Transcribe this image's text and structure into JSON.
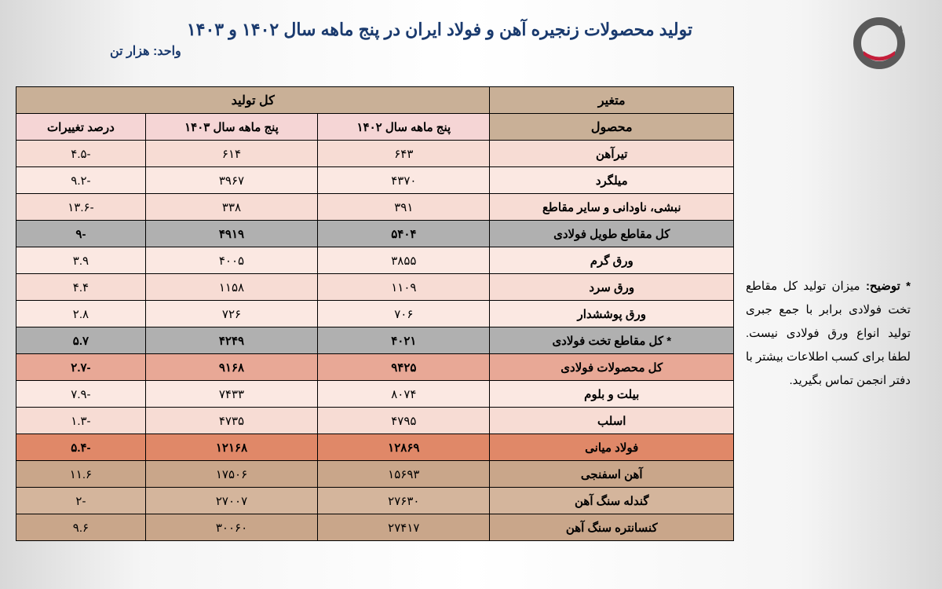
{
  "title": "تولید محصولات زنجیره آهن و فولاد ایران در پنج ماهه سال ۱۴۰۲ و ۱۴۰۳",
  "unit": "واحد: هزار تن",
  "sideNote": {
    "star": "*",
    "label": "توضیح:",
    "text": "میزان تولید کل مقاطع تخت فولادی برابر با جمع جبری تولید انواع ورق فولادی نیست. لطفا برای کسب اطلاعات بیشتر با دفتر انجمن تماس بگیرید."
  },
  "table": {
    "headers": {
      "variable": "متغیر",
      "product": "محصول",
      "totalProduction": "کل تولید",
      "period1402": "پنج ماهه سال ۱۴۰۲",
      "period1403": "پنج ماهه سال ۱۴۰۳",
      "changePercent": "درصد تغییرات"
    },
    "rows": [
      {
        "product": "تیرآهن",
        "v1402": "۶۴۳",
        "v1403": "۶۱۴",
        "change": "-۴.۵",
        "class": "row-light"
      },
      {
        "product": "میلگرد",
        "v1402": "۴۳۷۰",
        "v1403": "۳۹۶۷",
        "change": "-۹.۲",
        "class": "row-lighter"
      },
      {
        "product": "نبشی، ناودانی و سایر مقاطع",
        "v1402": "۳۹۱",
        "v1403": "۳۳۸",
        "change": "-۱۳.۶",
        "class": "row-light"
      },
      {
        "product": "کل مقاطع طویل فولادی",
        "v1402": "۵۴۰۴",
        "v1403": "۴۹۱۹",
        "change": "-۹",
        "class": "row-gray"
      },
      {
        "product": "ورق گرم",
        "v1402": "۳۸۵۵",
        "v1403": "۴۰۰۵",
        "change": "۳.۹",
        "class": "row-lighter"
      },
      {
        "product": "ورق سرد",
        "v1402": "۱۱۰۹",
        "v1403": "۱۱۵۸",
        "change": "۴.۴",
        "class": "row-light"
      },
      {
        "product": "ورق پوششدار",
        "v1402": "۷۰۶",
        "v1403": "۷۲۶",
        "change": "۲.۸",
        "class": "row-lighter"
      },
      {
        "product": "* کل مقاطع تخت فولادی",
        "v1402": "۴۰۲۱",
        "v1403": "۴۲۴۹",
        "change": "۵.۷",
        "class": "row-gray"
      },
      {
        "product": "کل محصولات فولادی",
        "v1402": "۹۴۲۵",
        "v1403": "۹۱۶۸",
        "change": "-۲.۷",
        "class": "row-pink"
      },
      {
        "product": "بیلت و بلوم",
        "v1402": "۸۰۷۴",
        "v1403": "۷۴۳۳",
        "change": "-۷.۹",
        "class": "row-lighter"
      },
      {
        "product": "اسلب",
        "v1402": "۴۷۹۵",
        "v1403": "۴۷۳۵",
        "change": "-۱.۳",
        "class": "row-light"
      },
      {
        "product": "فولاد میانی",
        "v1402": "۱۲۸۶۹",
        "v1403": "۱۲۱۶۸",
        "change": "-۵.۴",
        "class": "row-orange"
      },
      {
        "product": "آهن اسفنجی",
        "v1402": "۱۵۶۹۳",
        "v1403": "۱۷۵۰۶",
        "change": "۱۱.۶",
        "class": "row-brown"
      },
      {
        "product": "گندله سنگ آهن",
        "v1402": "۲۷۶۳۰",
        "v1403": "۲۷۰۰۷",
        "change": "-۲",
        "class": "row-brown2"
      },
      {
        "product": "کنسانتره سنگ آهن",
        "v1402": "۲۷۴۱۷",
        "v1403": "۳۰۰۶۰",
        "change": "۹.۶",
        "class": "row-brown"
      }
    ]
  }
}
